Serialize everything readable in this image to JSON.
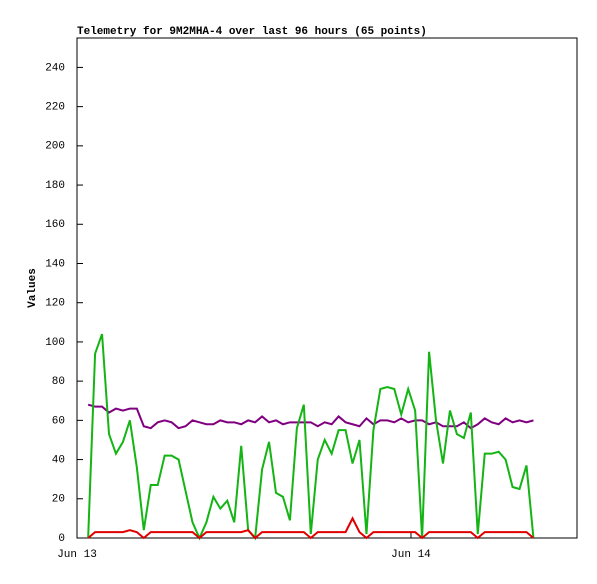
{
  "chart_data": {
    "type": "line",
    "title": "Telemetry for 9M2MHA-4 over last 96 hours (65 points)",
    "y_label": "Values",
    "x": [
      0.8,
      1.3,
      1.8,
      2.3,
      2.8,
      3.3,
      3.8,
      4.3,
      4.8,
      5.3,
      5.8,
      6.3,
      6.8,
      7.3,
      7.8,
      8.3,
      8.8,
      9.3,
      9.8,
      10.3,
      10.8,
      11.3,
      11.8,
      12.3,
      12.8,
      13.3,
      13.8,
      14.3,
      14.8,
      15.3,
      15.8,
      16.3,
      16.8,
      17.3,
      17.8,
      18.3,
      18.8,
      19.3,
      19.8,
      20.3,
      20.8,
      21.3,
      21.8,
      22.3,
      22.8,
      23.3,
      23.8,
      24.3,
      24.8,
      25.3,
      25.8,
      26.3,
      26.8,
      27.3,
      27.8,
      28.3,
      28.8,
      29.3,
      29.8,
      30.3,
      30.8,
      31.3,
      31.8,
      32.3,
      32.8
    ],
    "series": [
      {
        "color": "#800080",
        "values": [
          68,
          67,
          67,
          64,
          66,
          65,
          66,
          66,
          57,
          56,
          59,
          60,
          59,
          56,
          57,
          60,
          59,
          58,
          58,
          60,
          59,
          59,
          58,
          60,
          59,
          62,
          59,
          60,
          58,
          59,
          59,
          59,
          59,
          57,
          59,
          58,
          62,
          59,
          58,
          57,
          61,
          58,
          60,
          60,
          59,
          61,
          59,
          60,
          60,
          58,
          59,
          57,
          57,
          57,
          59,
          56,
          58,
          61,
          59,
          58,
          61,
          59,
          60,
          59,
          60
        ]
      },
      {
        "color": "#14b414",
        "values": [
          0,
          94,
          104,
          53,
          43,
          49,
          60,
          36,
          4,
          27,
          27,
          42,
          42,
          40,
          24,
          8,
          0,
          8,
          21,
          15,
          19,
          8,
          47,
          4,
          0,
          35,
          49,
          23,
          21,
          9,
          56,
          68,
          2,
          40,
          50,
          43,
          55,
          55,
          38,
          50,
          2,
          55,
          76,
          77,
          76,
          63,
          76,
          65,
          0,
          95,
          60,
          38,
          65,
          53,
          51,
          64,
          2,
          43,
          43,
          44,
          40,
          26,
          25,
          37,
          0
        ]
      },
      {
        "color": "#e00000",
        "values": [
          0,
          3,
          3,
          3,
          3,
          3,
          4,
          3,
          0,
          3,
          3,
          3,
          3,
          3,
          3,
          3,
          0,
          3,
          3,
          3,
          3,
          3,
          3,
          4,
          0,
          3,
          3,
          3,
          3,
          3,
          3,
          3,
          0,
          3,
          3,
          3,
          3,
          3,
          10,
          3,
          0,
          3,
          3,
          3,
          3,
          3,
          3,
          3,
          0,
          3,
          3,
          3,
          3,
          3,
          3,
          3,
          0,
          3,
          3,
          3,
          3,
          3,
          3,
          3,
          0
        ]
      }
    ],
    "xlim": [
      0,
      35.93
    ],
    "xticks": [
      {
        "value": 0,
        "label": "Jun 13"
      },
      {
        "value": 24,
        "label": "Jun 14"
      }
    ],
    "ylim": [
      0,
      255
    ],
    "yticks": [
      0,
      20,
      40,
      60,
      80,
      100,
      120,
      140,
      160,
      180,
      200,
      220,
      240
    ]
  }
}
